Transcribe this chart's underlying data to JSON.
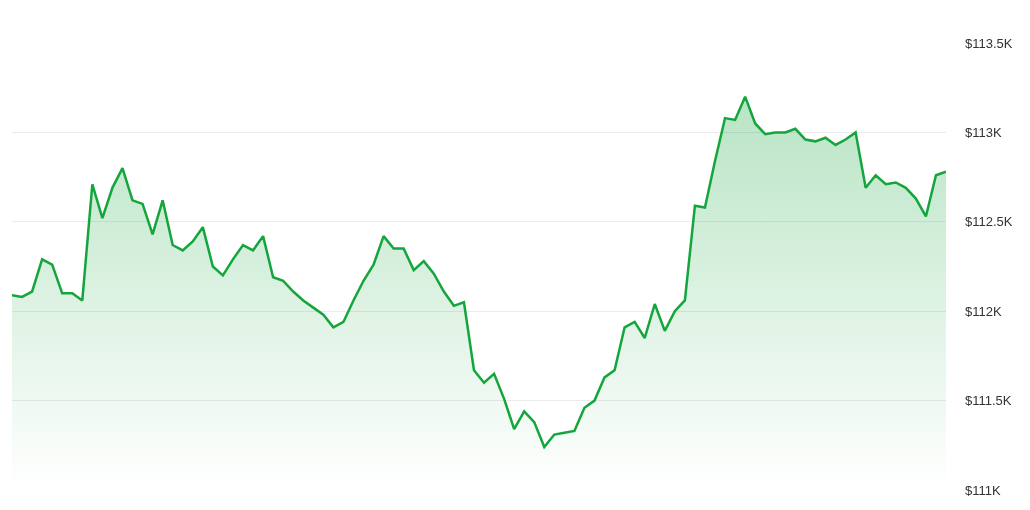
{
  "chart_data": {
    "type": "area",
    "categories": [
      null,
      null,
      null,
      null,
      null,
      null,
      null,
      null,
      null,
      null,
      null,
      null,
      null,
      null,
      null,
      null,
      null,
      null,
      null,
      null,
      null,
      null,
      null,
      null,
      null,
      null,
      null,
      null,
      null,
      null,
      null,
      null,
      null,
      null,
      null,
      null,
      null,
      null,
      null,
      null,
      null,
      null,
      null,
      null,
      null,
      null,
      null,
      null,
      null,
      null,
      null,
      null,
      null,
      null,
      null,
      null,
      null,
      null,
      null,
      null,
      null,
      null,
      null,
      null,
      null,
      null,
      null,
      null,
      null,
      null,
      null,
      null,
      null,
      null,
      null,
      null,
      null,
      null,
      null,
      null,
      null,
      null,
      null,
      null,
      null,
      null,
      null,
      null,
      null,
      null,
      null,
      null,
      null,
      null
    ],
    "series": [
      {
        "color": "#14a53c",
        "values": [
          112.09,
          112.08,
          112.11,
          112.29,
          112.26,
          112.1,
          112.1,
          112.06,
          112.71,
          112.52,
          112.69,
          112.8,
          112.62,
          112.6,
          112.43,
          112.62,
          112.37,
          112.34,
          112.39,
          112.47,
          112.25,
          112.2,
          112.29,
          112.37,
          112.34,
          112.42,
          112.19,
          112.17,
          112.11,
          112.06,
          112.02,
          111.98,
          111.91,
          111.94,
          112.06,
          112.17,
          112.26,
          112.42,
          112.35,
          112.35,
          112.23,
          112.28,
          112.21,
          112.11,
          112.03,
          112.05,
          111.67,
          111.6,
          111.65,
          111.51,
          111.34,
          111.44,
          111.38,
          111.24,
          111.31,
          111.32,
          111.33,
          111.46,
          111.5,
          111.63,
          111.67,
          111.91,
          111.94,
          111.85,
          112.04,
          111.89,
          112.0,
          112.06,
          112.59,
          112.58,
          112.84,
          113.08,
          113.07,
          113.2,
          113.05,
          112.99,
          113.0,
          113.0,
          113.02,
          112.96,
          112.95,
          112.97,
          112.93,
          112.96,
          113.0,
          112.69,
          112.76,
          112.71,
          112.72,
          112.69,
          112.63,
          112.53,
          112.76,
          112.78
        ]
      }
    ],
    "ylim": [
      111,
      113.5
    ],
    "yticks": [
      {
        "value": 111,
        "label": "$111K"
      },
      {
        "value": 111.5,
        "label": "$111.5K"
      },
      {
        "value": 112,
        "label": "$112K"
      },
      {
        "value": 112.5,
        "label": "$112.5K"
      },
      {
        "value": 113,
        "label": "$113K"
      },
      {
        "value": 113.5,
        "label": "$113.5K"
      }
    ],
    "grid": "y",
    "tick_labels": "y",
    "marker": "none",
    "line_style": "solid"
  }
}
